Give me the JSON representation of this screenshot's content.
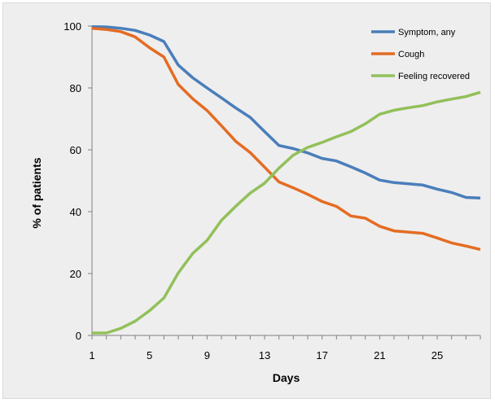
{
  "chart_data": {
    "type": "line",
    "title": "",
    "xlabel": "Days",
    "ylabel": "% of patients",
    "xlim": [
      1,
      28
    ],
    "ylim": [
      0,
      100
    ],
    "xticks": [
      1,
      5,
      9,
      13,
      17,
      21,
      25
    ],
    "yticks": [
      0,
      20,
      40,
      60,
      80,
      100
    ],
    "grid": false,
    "legend_position": "top-right",
    "x": [
      1,
      2,
      3,
      4,
      5,
      6,
      7,
      8,
      9,
      10,
      11,
      12,
      13,
      14,
      15,
      16,
      17,
      18,
      19,
      20,
      21,
      22,
      23,
      24,
      25,
      26,
      27,
      28
    ],
    "series": [
      {
        "name": "Symptom, any",
        "color": "#4a7ebb",
        "values": [
          99.8,
          99.7,
          99.3,
          98.6,
          97.1,
          95,
          87.4,
          83.3,
          80,
          76.8,
          73.5,
          70.5,
          65.9,
          61.4,
          60.4,
          59,
          57.2,
          56.4,
          54.5,
          52.5,
          50.2,
          49.4,
          49,
          48.6,
          47.3,
          46.2,
          44.6,
          44.4
        ]
      },
      {
        "name": "Cough",
        "color": "#e46c23",
        "values": [
          99.3,
          98.9,
          98.2,
          96.5,
          93,
          90,
          81.1,
          76.5,
          72.7,
          67.8,
          62.7,
          59.1,
          54.4,
          49.6,
          47.7,
          45.6,
          43.3,
          41.7,
          38.6,
          37.9,
          35.3,
          33.8,
          33.4,
          33,
          31.5,
          29.9,
          28.9,
          27.8
        ]
      },
      {
        "name": "Feeling recovered",
        "color": "#92c05a",
        "values": [
          0.8,
          0.8,
          2.3,
          4.6,
          8,
          12.1,
          20.2,
          26.5,
          30.7,
          37.2,
          41.8,
          46,
          49.2,
          54.1,
          58.3,
          60.8,
          62.4,
          64.2,
          65.9,
          68.4,
          71.5,
          72.8,
          73.6,
          74.3,
          75.5,
          76.4,
          77.2,
          78.6
        ]
      }
    ]
  }
}
